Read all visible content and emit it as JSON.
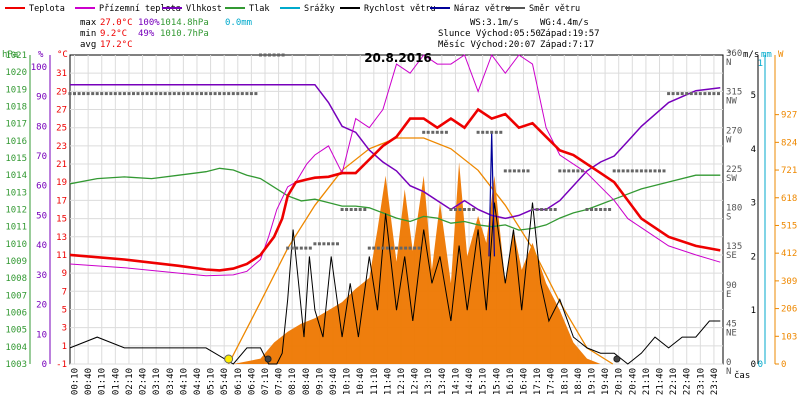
{
  "chart_data": {
    "type": "line",
    "title": "20.8.2016",
    "legend": [
      {
        "label": "Teplota",
        "color": "#ee0000"
      },
      {
        "label": "Přízemní teplota",
        "color": "#cc00cc"
      },
      {
        "label": "Vlhkost",
        "color": "#7700bb"
      },
      {
        "label": "Tlak",
        "color": "#339933"
      },
      {
        "label": "Srážky",
        "color": "#00aacc"
      },
      {
        "label": "Rychlost větru",
        "color": "#000000"
      },
      {
        "label": "Náraz větru",
        "color": "#000099"
      },
      {
        "label": "Směr větru",
        "color": "#555555"
      }
    ],
    "summary": {
      "max_label": "max",
      "max_temp": "27.0°C",
      "max_hum": "100%",
      "max_press": "1014.8hPa",
      "max_rain": "0.0mm",
      "min_label": "min",
      "min_temp": "9.2°C",
      "min_hum": "49%",
      "min_press": "1010.7hPa",
      "avg_label": "avg",
      "avg_temp": "17.2°C"
    },
    "info": {
      "ws": "WS:3.1m/s",
      "wg": "WG:4.4m/s",
      "sun": "Slunce Východ:05:50",
      "sunset": "Západ:19:57",
      "moon": "Měsíc  Východ:20:07",
      "moonset": "Západ:7:17"
    },
    "axes": {
      "hpa_unit": "hPa",
      "pct_unit": "%",
      "c_unit": "°C",
      "deg_unit": "°",
      "ms_unit": "m/s",
      "mm_unit": "mm",
      "w_unit": "W",
      "hpa_ticks": [
        "1021",
        "1020",
        "1019",
        "1018",
        "1017",
        "1016",
        "1015",
        "1014",
        "1013",
        "1012",
        "1011",
        "1010",
        "1009",
        "1008",
        "1007",
        "1006",
        "1005",
        "1004",
        "1003"
      ],
      "pct_ticks": [
        "100",
        "90",
        "80",
        "70",
        "60",
        "50",
        "40",
        "30",
        "20",
        "10",
        "0"
      ],
      "c_ticks": [
        "31",
        "29",
        "27",
        "25",
        "23",
        "21",
        "19",
        "17",
        "15",
        "13",
        "11",
        "9",
        "7",
        "5",
        "3",
        "1",
        "-1"
      ],
      "deg_ticks": [
        "360",
        "315",
        "270",
        "225",
        "180",
        "135",
        "90",
        "45",
        "0"
      ],
      "dir_ticks": [
        "N",
        "NW",
        "W",
        "SW",
        "S",
        "SE",
        "E",
        "NE",
        "N"
      ],
      "ms_ticks": [
        "5",
        "4",
        "3",
        "2",
        "1",
        "0"
      ],
      "mm_ticks": [
        "1",
        "0"
      ],
      "w_ticks": [
        "927",
        "824",
        "721",
        "618",
        "515",
        "412",
        "309",
        "206",
        "103",
        "0"
      ],
      "x_label": "čas",
      "x_ticks": [
        "00:10",
        "00:40",
        "01:10",
        "01:40",
        "02:10",
        "02:40",
        "03:10",
        "03:40",
        "04:10",
        "04:40",
        "05:10",
        "05:40",
        "06:10",
        "06:40",
        "07:10",
        "07:40",
        "08:10",
        "08:40",
        "09:10",
        "09:40",
        "10:10",
        "10:40",
        "11:10",
        "11:40",
        "12:10",
        "12:40",
        "13:10",
        "13:40",
        "14:10",
        "14:40",
        "15:10",
        "15:40",
        "16:10",
        "16:40",
        "17:10",
        "17:40",
        "18:10",
        "18:40",
        "19:10",
        "19:40",
        "20:10",
        "20:40",
        "21:10",
        "21:40",
        "22:10",
        "22:40",
        "23:10",
        "23:40"
      ]
    },
    "x_range_hours": [
      0,
      24
    ],
    "ylim_celsius": [
      -1,
      33
    ],
    "ylim_percent": [
      0,
      104
    ],
    "ylim_wind_ms": [
      0,
      5
    ],
    "ylim_radiation_w": [
      0,
      1000
    ],
    "series": {
      "teplota": {
        "x": [
          0,
          2,
          4,
          5,
          5.5,
          6,
          6.5,
          7,
          7.5,
          7.8,
          8,
          8.3,
          8.7,
          9,
          9.5,
          10,
          10.5,
          11,
          11.5,
          12,
          12.5,
          13,
          13.5,
          14,
          14.5,
          15,
          15.5,
          16,
          16.5,
          17,
          17.5,
          18,
          18.5,
          19,
          19.5,
          20,
          21,
          22,
          23,
          23.9
        ],
        "y": [
          11,
          10.5,
          9.8,
          9.4,
          9.3,
          9.5,
          10,
          11,
          13,
          15,
          17.5,
          19,
          19.3,
          19.5,
          19.6,
          20,
          20,
          21.5,
          23,
          24,
          26,
          26,
          25,
          26,
          25,
          27,
          26,
          26.5,
          25,
          25.5,
          24,
          22.5,
          22,
          21,
          20,
          19,
          15,
          13,
          12,
          11.5
        ]
      },
      "prizemni": {
        "x": [
          0,
          2,
          4,
          5,
          6,
          6.5,
          7,
          7.3,
          7.6,
          8,
          8.3,
          8.7,
          9,
          9.5,
          10,
          10.5,
          11,
          11.5,
          12,
          12.5,
          13,
          13.5,
          14,
          14.5,
          15,
          15.5,
          16,
          16.5,
          17,
          17.5,
          18,
          18.5,
          19,
          19.5,
          20,
          20.5,
          21,
          22,
          23,
          23.9
        ],
        "y": [
          10,
          9.6,
          9,
          8.7,
          8.8,
          9.2,
          10.5,
          13,
          16,
          18.5,
          19,
          21,
          22,
          23,
          20,
          26,
          25,
          27,
          32,
          31,
          33,
          32,
          32,
          33,
          29,
          33,
          31,
          33,
          32,
          25,
          22,
          21,
          20,
          18.5,
          17,
          15,
          14,
          12,
          11,
          10.2
        ]
      },
      "vlhkost": {
        "x": [
          0,
          2,
          4,
          6,
          7,
          8,
          9,
          9.5,
          10,
          10.5,
          11,
          11.5,
          12,
          12.5,
          13,
          13.5,
          14,
          14.5,
          15,
          15.5,
          16,
          16.5,
          17,
          17.5,
          18,
          18.5,
          19,
          19.5,
          20,
          20.5,
          21,
          22,
          23,
          23.9
        ],
        "y": [
          94,
          94,
          94,
          94,
          94,
          94,
          94,
          88,
          80,
          78,
          72,
          68,
          65,
          60,
          58,
          55,
          52,
          55,
          52,
          50,
          49,
          50,
          52,
          52,
          55,
          60,
          65,
          68,
          70,
          75,
          80,
          88,
          92,
          93
        ]
      },
      "tlak": {
        "x": [
          0,
          1,
          2,
          3,
          4,
          5,
          5.5,
          6,
          6.5,
          7,
          8,
          8.5,
          9,
          9.5,
          10,
          10.5,
          11,
          11.5,
          12,
          12.5,
          13,
          13.5,
          14,
          14.5,
          15,
          15.5,
          16,
          16.5,
          17,
          17.5,
          18,
          18.5,
          19,
          19.5,
          20,
          21,
          22,
          23,
          23.9
        ],
        "y": [
          1013.5,
          1013.8,
          1013.9,
          1013.8,
          1014,
          1014.2,
          1014.4,
          1014.3,
          1014,
          1013.8,
          1012.8,
          1012.5,
          1012.6,
          1012.4,
          1012.2,
          1012.2,
          1012.1,
          1011.8,
          1011.5,
          1011.3,
          1011.6,
          1011.5,
          1011.2,
          1011.3,
          1011.1,
          1011.0,
          1011.1,
          1010.8,
          1010.9,
          1011.1,
          1011.5,
          1011.8,
          1012.0,
          1012.3,
          1012.6,
          1013.2,
          1013.6,
          1014.0,
          1014.0
        ]
      },
      "vitr": {
        "x": [
          0,
          1,
          2,
          3,
          4,
          5,
          6,
          6.5,
          7,
          7.3,
          7.6,
          7.8,
          8,
          8.2,
          8.4,
          8.6,
          8.8,
          9,
          9.3,
          9.6,
          10,
          10.3,
          10.6,
          11,
          11.3,
          11.6,
          12,
          12.3,
          12.6,
          13,
          13.3,
          13.6,
          14,
          14.3,
          14.6,
          15,
          15.3,
          15.6,
          16,
          16.3,
          16.6,
          17,
          17.3,
          17.6,
          18,
          18.5,
          19,
          19.5,
          20,
          20.5,
          21,
          21.5,
          22,
          22.5,
          23,
          23.5,
          23.9
        ],
        "y": [
          0.3,
          0.5,
          0.3,
          0.3,
          0.3,
          0.3,
          0,
          0.3,
          0.3,
          0,
          0,
          0.2,
          1.2,
          2.5,
          1.5,
          0.5,
          2,
          1,
          0.5,
          2,
          0.5,
          1.5,
          0.5,
          2,
          1,
          2.8,
          1,
          2,
          0.8,
          2.5,
          1.5,
          2,
          0.8,
          2.2,
          1,
          2.5,
          1,
          3,
          1.5,
          2.5,
          1,
          3,
          1.5,
          0.8,
          1.2,
          0.5,
          0.3,
          0.2,
          0.2,
          0,
          0.2,
          0.5,
          0.3,
          0.5,
          0.5,
          0.8,
          0.8
        ]
      },
      "naraz": {
        "x": [
          15.4,
          15.5,
          15.6
        ],
        "y": [
          2,
          4.3,
          2
        ]
      },
      "smer": {
        "x": [
          0,
          1,
          2,
          3,
          4,
          5,
          6,
          7,
          8,
          9,
          10,
          11,
          12,
          13,
          14,
          15,
          16,
          17,
          18,
          19,
          20,
          21,
          22,
          23
        ],
        "y": [
          315,
          315,
          315,
          315,
          315,
          315,
          315,
          360,
          135,
          140,
          180,
          135,
          135,
          270,
          180,
          270,
          225,
          180,
          225,
          180,
          225,
          225,
          315,
          315
        ]
      },
      "zareni": {
        "x": [
          6,
          7,
          7.5,
          8,
          8.5,
          9,
          9.5,
          10,
          10.5,
          11,
          11.3,
          11.6,
          12,
          12.3,
          12.6,
          13,
          13.3,
          13.6,
          14,
          14.3,
          14.6,
          15,
          15.3,
          15.6,
          16,
          16.3,
          16.6,
          17,
          17.5,
          18,
          18.5,
          19,
          19.5
        ],
        "y": [
          0,
          20,
          80,
          120,
          150,
          170,
          200,
          230,
          280,
          320,
          500,
          700,
          380,
          650,
          420,
          700,
          350,
          600,
          300,
          750,
          400,
          550,
          450,
          700,
          300,
          500,
          350,
          450,
          300,
          200,
          80,
          20,
          0
        ]
      },
      "slunce": {
        "x": [
          5.83,
          7,
          8,
          9,
          10,
          11,
          12,
          13,
          14,
          15,
          16,
          17,
          18,
          19,
          19.95
        ],
        "y": [
          0,
          230,
          430,
          590,
          720,
          800,
          840,
          840,
          800,
          720,
          590,
          430,
          230,
          60,
          0
        ]
      }
    }
  }
}
